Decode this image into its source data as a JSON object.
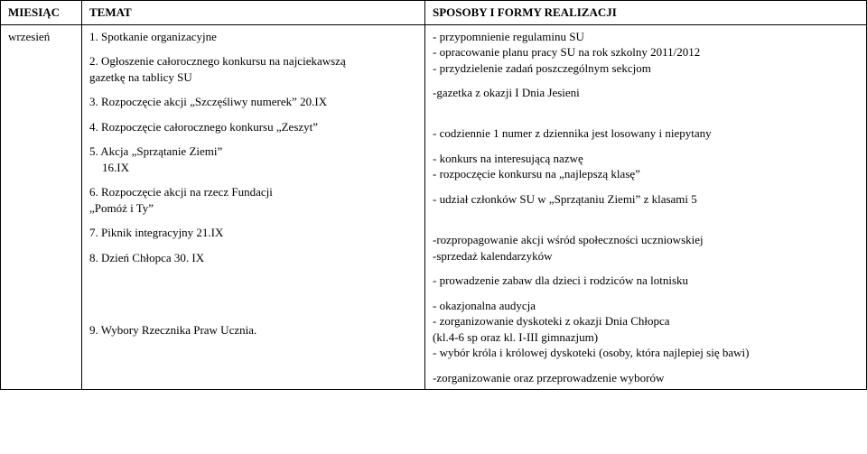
{
  "headers": {
    "month": "MIESIĄC",
    "topic": "TEMAT",
    "ways": "SPOSOBY I FORMY REALIZACJI"
  },
  "month": "wrzesień",
  "topics": {
    "t1": "1. Spotkanie organizacyjne",
    "t2a": "2. Ogłoszenie całorocznego konkursu na najciekawszą",
    "t2b": "gazetkę na tablicy SU",
    "t3": "3. Rozpoczęcie akcji „Szczęśliwy numerek” 20.IX",
    "t4": "4. Rozpoczęcie całorocznego konkursu „Zeszyt”",
    "t5a": "5. Akcja „Sprzątanie Ziemi”",
    "t5b": "16.IX",
    "t6a": "6. Rozpoczęcie akcji na rzecz Fundacji",
    "t6b": "„Pomóż i Ty”",
    "t7": "7. Piknik integracyjny 21.IX",
    "t8": "8. Dzień Chłopca 30. IX",
    "t9": "9. Wybory Rzecznika Praw Ucznia."
  },
  "ways": {
    "w1a": "-  przypomnienie regulaminu SU",
    "w1b": "- opracowanie planu pracy SU na rok szkolny 2011/2012",
    "w1c": "- przydzielenie zadań poszczególnym sekcjom",
    "w2": "-gazetka z okazji I Dnia Jesieni",
    "w3": "- codziennie 1 numer z dziennika jest losowany i niepytany",
    "w4a": "- konkurs na interesującą nazwę",
    "w4b": "- rozpoczęcie konkursu na „najlepszą klasę”",
    "w5": "- udział członków SU w „Sprzątaniu Ziemi” z klasami 5",
    "w6a": "-rozpropagowanie akcji wśród społeczności uczniowskiej",
    "w6b": "-sprzedaż kalendarzyków",
    "w7": "- prowadzenie zabaw dla dzieci i rodziców na lotnisku",
    "w8a": "- okazjonalna audycja",
    "w8b": "- zorganizowanie dyskoteki z okazji Dnia Chłopca",
    "w8c": "(kl.4-6 sp oraz kl. I-III gimnazjum)",
    "w8d": "- wybór króla i królowej dyskoteki (osoby, która najlepiej się bawi)",
    "w9": "-zorganizowanie oraz przeprowadzenie wyborów"
  }
}
